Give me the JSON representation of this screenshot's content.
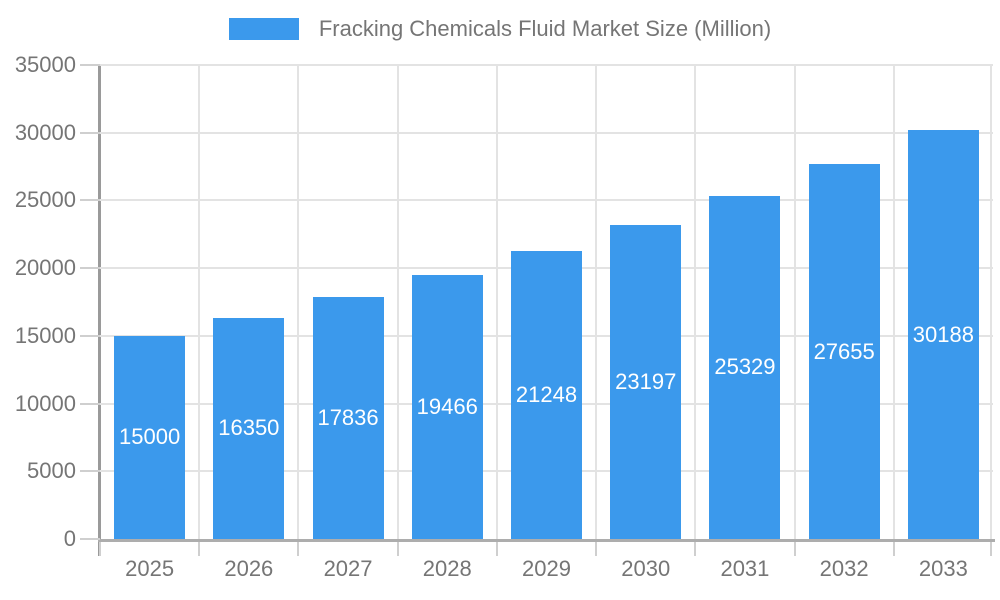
{
  "chart_data": {
    "type": "bar",
    "title": "Fracking Chemicals Fluid Market Size (Million)",
    "legend": [
      {
        "label": "Fracking Chemicals Fluid Market Size (Million)",
        "color": "#3B99EC"
      }
    ],
    "legend_position": "top",
    "categories": [
      "2025",
      "2026",
      "2027",
      "2028",
      "2029",
      "2030",
      "2031",
      "2032",
      "2033"
    ],
    "values": [
      15000,
      16350,
      17836,
      19466,
      21248,
      23197,
      25329,
      27655,
      30188
    ],
    "xlabel": "",
    "ylabel": "",
    "ylim": [
      0,
      35000
    ],
    "y_ticks": [
      0,
      5000,
      10000,
      15000,
      20000,
      25000,
      30000,
      35000
    ],
    "grid": true,
    "value_labels_position": "inside-center"
  },
  "colors": {
    "bar": "#3B99EC",
    "grid": "#E3E3E3",
    "axis_y": "#9A9A9A",
    "axis_x": "#ADADAD",
    "tick": "#CFCFCF",
    "text": "#757575",
    "value_label": "#FFFFFF",
    "background": "#FFFFFF"
  }
}
